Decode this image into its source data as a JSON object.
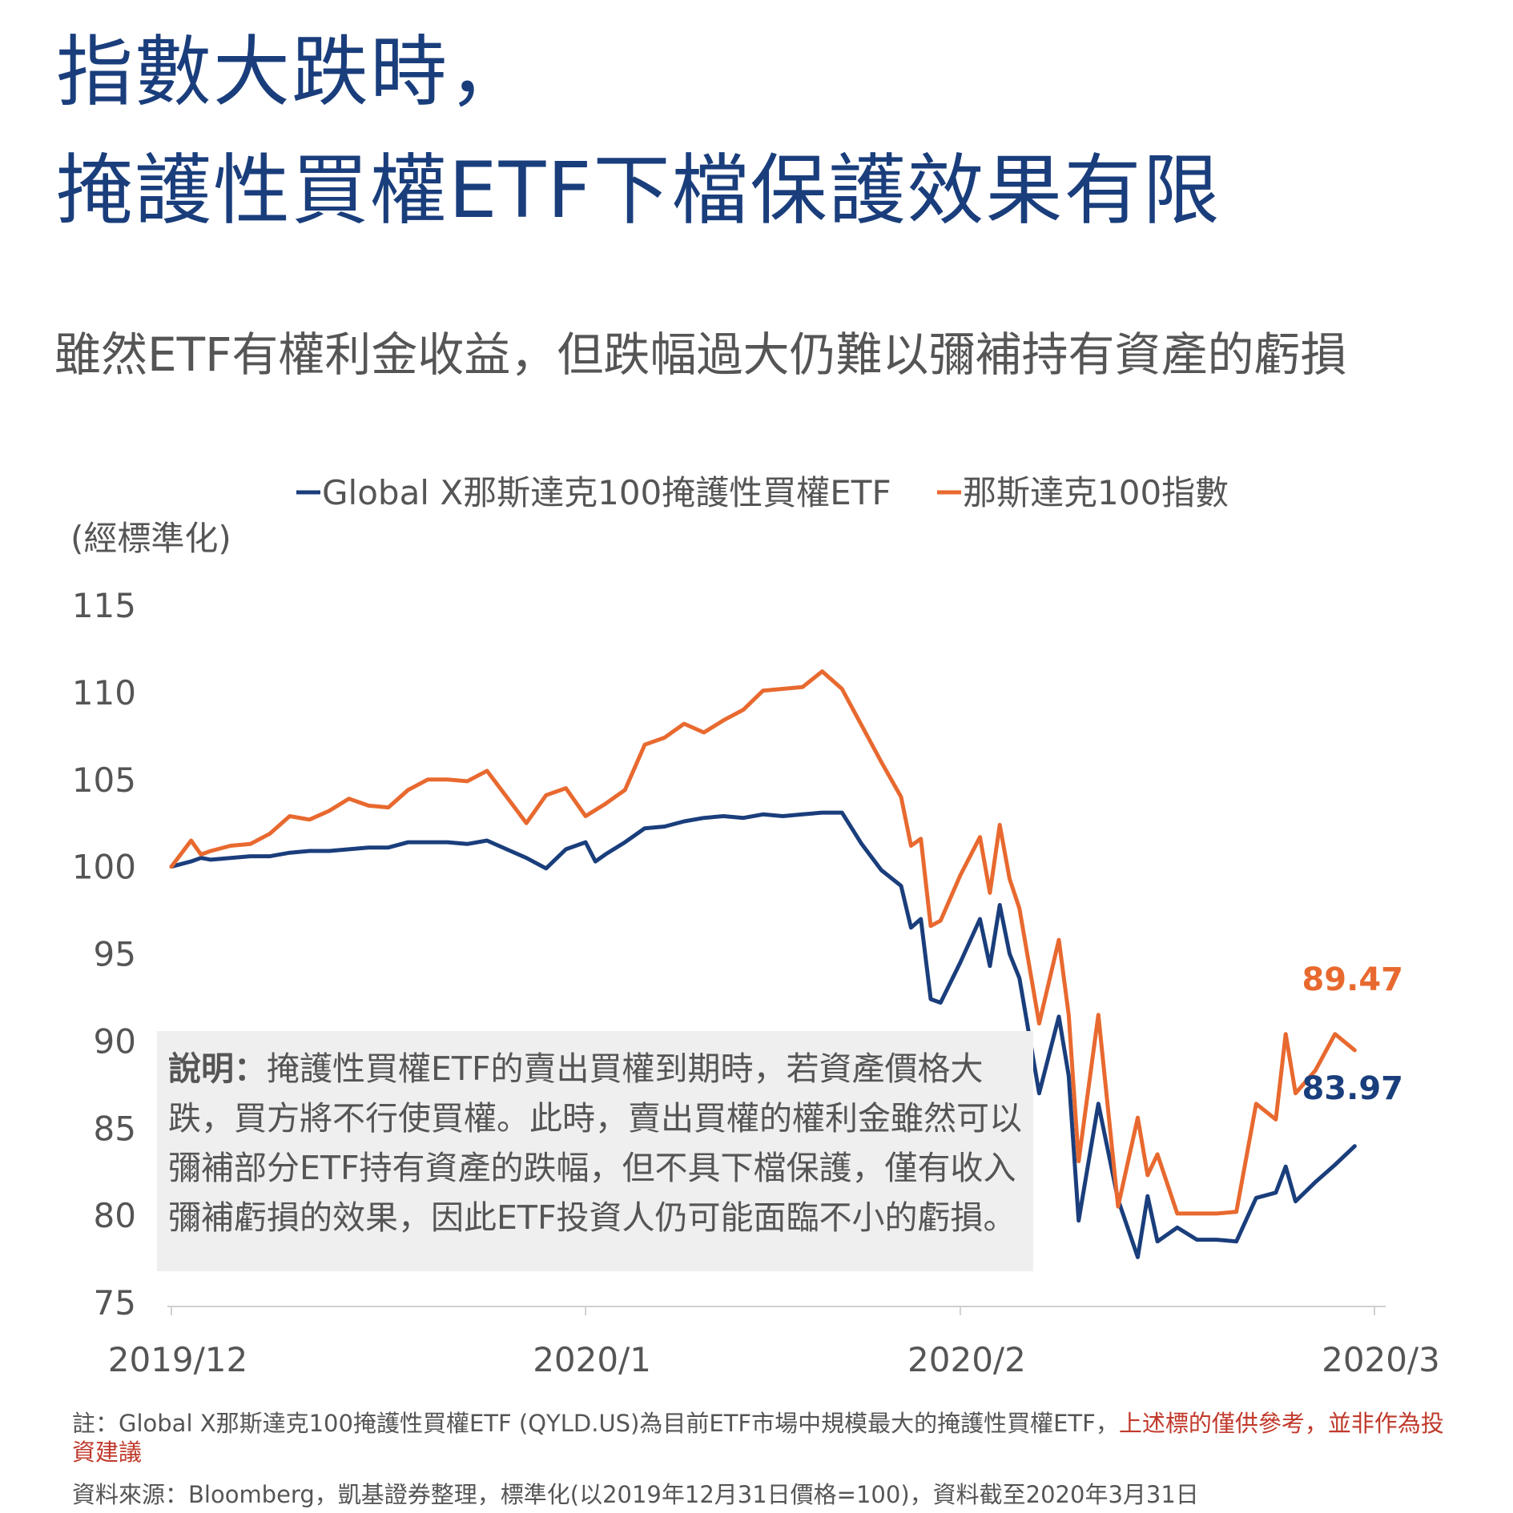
{
  "title": {
    "line1": "指數大跌時，",
    "line2": "掩護性買權ETF下檔保護效果有限"
  },
  "subtitle": "雖然ETF有權利金收益，但跌幅過大仍難以彌補持有資產的虧損",
  "colors": {
    "title": "#1a3e7c",
    "qyld": "#1a3e7c",
    "ndx": "#e8692f",
    "note_bg": "#efefef",
    "red": "#c0392b"
  },
  "note": {
    "label": "說明：",
    "text": "掩護性買權ETF的賣出買權到期時，若資產價格大跌，買方將不行使買權。此時，賣出買權的權利金雖然可以彌補部分ETF持有資產的跌幅，但不具下檔保護，僅有收入彌補虧損的效果，因此ETF投資人仍可能面臨不小的虧損。"
  },
  "footnotes": {
    "note_prefix": "註：Global X那斯達克100掩護性買權ETF (QYLD.US)為目前ETF市場中規模最大的掩護性買權ETF，",
    "note_red": "上述標的僅供參考，並非作為投資建議",
    "source": "資料來源：Bloomberg，凱基證券整理，標準化(以2019年12月31日價格=100)，資料截至2020年3月31日"
  },
  "chart_data": {
    "type": "line",
    "ylabel": "(經標準化)",
    "ylim": [
      75,
      115
    ],
    "yticks": [
      "115",
      "110",
      "105",
      "100",
      "95",
      "90",
      "85",
      "80",
      "75"
    ],
    "xticks": [
      {
        "label": "2019/12",
        "x": 0
      },
      {
        "label": "2020/1",
        "x": 21
      },
      {
        "label": "2020/2",
        "x": 40
      },
      {
        "label": "2020/3",
        "x": 61
      }
    ],
    "grid": false,
    "legend_position": "top",
    "series": [
      {
        "name": "Global X那斯達克100掩護性買權ETF",
        "color": "#1a3e7c",
        "end_label": "83.97",
        "points": [
          [
            0,
            100
          ],
          [
            1,
            100.3
          ],
          [
            1.5,
            100.5
          ],
          [
            2,
            100.4
          ],
          [
            3,
            100.5
          ],
          [
            4,
            100.6
          ],
          [
            5,
            100.6
          ],
          [
            6,
            100.8
          ],
          [
            7,
            100.9
          ],
          [
            8,
            100.9
          ],
          [
            9,
            101.0
          ],
          [
            10,
            101.1
          ],
          [
            11,
            101.1
          ],
          [
            12,
            101.4
          ],
          [
            13,
            101.4
          ],
          [
            14,
            101.4
          ],
          [
            15,
            101.3
          ],
          [
            16,
            101.5
          ],
          [
            17,
            101.0
          ],
          [
            18,
            100.5
          ],
          [
            19,
            99.9
          ],
          [
            20,
            101.0
          ],
          [
            21,
            101.4
          ],
          [
            21.5,
            100.3
          ],
          [
            22,
            100.7
          ],
          [
            23,
            101.4
          ],
          [
            24,
            102.2
          ],
          [
            25,
            102.3
          ],
          [
            26,
            102.6
          ],
          [
            27,
            102.8
          ],
          [
            28,
            102.9
          ],
          [
            29,
            102.8
          ],
          [
            30,
            103.0
          ],
          [
            31,
            102.9
          ],
          [
            32,
            103.0
          ],
          [
            33,
            103.1
          ],
          [
            34,
            103.1
          ],
          [
            35,
            101.3
          ],
          [
            36,
            99.8
          ],
          [
            37,
            98.9
          ],
          [
            37.5,
            96.5
          ],
          [
            38,
            97.0
          ],
          [
            38.5,
            92.4
          ],
          [
            39,
            92.2
          ],
          [
            40,
            94.5
          ],
          [
            41,
            97.0
          ],
          [
            41.5,
            94.3
          ],
          [
            42,
            97.8
          ],
          [
            42.5,
            95.0
          ],
          [
            43,
            93.6
          ],
          [
            44,
            87.0
          ],
          [
            45,
            91.4
          ],
          [
            45.5,
            88.0
          ],
          [
            46,
            79.7
          ],
          [
            47,
            86.4
          ],
          [
            48,
            80.9
          ],
          [
            49,
            77.6
          ],
          [
            49.5,
            81.1
          ],
          [
            50,
            78.5
          ],
          [
            51,
            79.3
          ],
          [
            52,
            78.6
          ],
          [
            53,
            78.6
          ],
          [
            54,
            78.5
          ],
          [
            55,
            81.0
          ],
          [
            56,
            81.3
          ],
          [
            56.5,
            82.8
          ],
          [
            57,
            80.8
          ],
          [
            58,
            81.9
          ],
          [
            59,
            82.9
          ],
          [
            60,
            83.97
          ]
        ]
      },
      {
        "name": "那斯達克100指數",
        "color": "#e8692f",
        "end_label": "89.47",
        "points": [
          [
            0,
            100
          ],
          [
            1,
            101.5
          ],
          [
            1.5,
            100.7
          ],
          [
            2,
            100.9
          ],
          [
            3,
            101.2
          ],
          [
            4,
            101.3
          ],
          [
            5,
            101.9
          ],
          [
            6,
            102.9
          ],
          [
            7,
            102.7
          ],
          [
            8,
            103.2
          ],
          [
            9,
            103.9
          ],
          [
            10,
            103.5
          ],
          [
            11,
            103.4
          ],
          [
            12,
            104.4
          ],
          [
            13,
            105.0
          ],
          [
            14,
            105.0
          ],
          [
            15,
            104.9
          ],
          [
            16,
            105.5
          ],
          [
            17,
            104.0
          ],
          [
            18,
            102.5
          ],
          [
            19,
            104.1
          ],
          [
            20,
            104.5
          ],
          [
            21,
            102.9
          ],
          [
            22,
            103.6
          ],
          [
            23,
            104.4
          ],
          [
            24,
            107.0
          ],
          [
            25,
            107.4
          ],
          [
            26,
            108.2
          ],
          [
            27,
            107.7
          ],
          [
            28,
            108.4
          ],
          [
            29,
            109.0
          ],
          [
            30,
            110.1
          ],
          [
            31,
            110.2
          ],
          [
            32,
            110.3
          ],
          [
            33,
            111.2
          ],
          [
            34,
            110.2
          ],
          [
            35,
            108.1
          ],
          [
            36,
            106.0
          ],
          [
            37,
            104.0
          ],
          [
            37.5,
            101.2
          ],
          [
            38,
            101.6
          ],
          [
            38.5,
            96.6
          ],
          [
            39,
            96.9
          ],
          [
            40,
            99.5
          ],
          [
            41,
            101.7
          ],
          [
            41.5,
            98.5
          ],
          [
            42,
            102.4
          ],
          [
            42.5,
            99.3
          ],
          [
            43,
            97.6
          ],
          [
            44,
            91.0
          ],
          [
            45,
            95.8
          ],
          [
            45.5,
            91.5
          ],
          [
            46,
            83.1
          ],
          [
            47,
            91.5
          ],
          [
            48,
            80.5
          ],
          [
            49,
            85.6
          ],
          [
            49.5,
            82.3
          ],
          [
            50,
            83.5
          ],
          [
            51,
            80.1
          ],
          [
            52,
            80.1
          ],
          [
            53,
            80.1
          ],
          [
            54,
            80.2
          ],
          [
            55,
            86.4
          ],
          [
            56,
            85.5
          ],
          [
            56.5,
            90.4
          ],
          [
            57,
            87.0
          ],
          [
            58,
            88.3
          ],
          [
            59,
            90.4
          ],
          [
            60,
            89.47
          ]
        ]
      }
    ]
  }
}
